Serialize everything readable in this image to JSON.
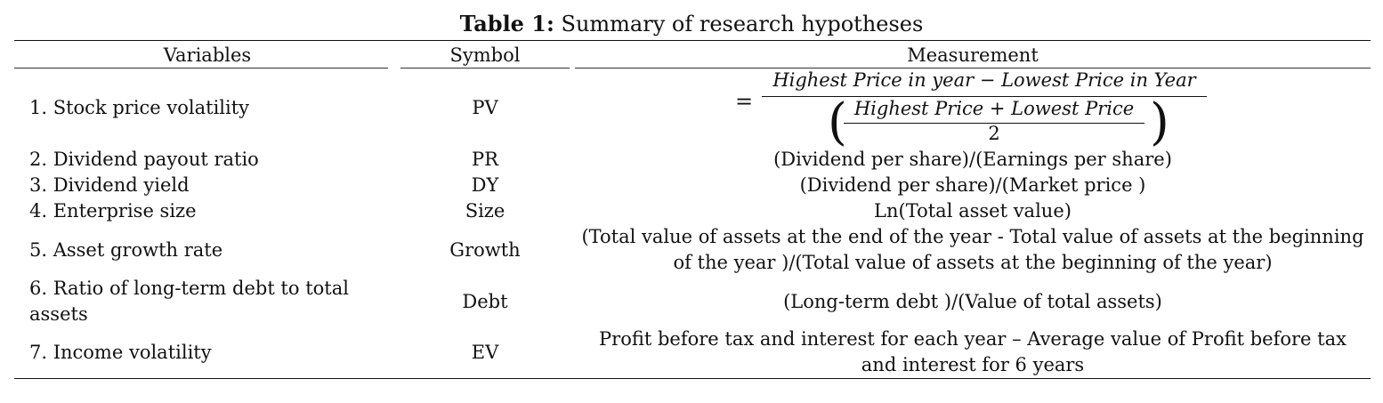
{
  "caption": {
    "label": "Table 1:",
    "text": " Summary of research hypotheses"
  },
  "headers": {
    "variables": "Variables",
    "symbol": "Symbol",
    "measurement": "Measurement"
  },
  "formula": {
    "equals": "=",
    "numerator": "Highest Price in year − Lowest Price in Year",
    "inner_numerator": "Highest Price + Lowest Price",
    "inner_denominator": "2",
    "open_paren": "(",
    "close_paren": ")"
  },
  "rows": [
    {
      "variable": "1. Stock price volatility",
      "symbol": "PV",
      "measurement": ""
    },
    {
      "variable": "2. Dividend payout ratio",
      "symbol": "PR",
      "measurement": "(Dividend per share)/(Earnings per share)"
    },
    {
      "variable": "3. Dividend yield",
      "symbol": "DY",
      "measurement": "(Dividend per share)/(Market price )"
    },
    {
      "variable": "4. Enterprise size",
      "symbol": "Size",
      "measurement": "Ln(Total asset value)"
    },
    {
      "variable": "5. Asset growth rate",
      "symbol": "Growth",
      "measurement_line1": "(Total value of assets at the end of the year - Total value of assets at the beginning",
      "measurement_line2": "of the year )/(Total value of assets at the beginning of the year)"
    },
    {
      "variable_line1": "6. Ratio of long-term debt to total",
      "variable_line2": "assets",
      "symbol": "Debt",
      "measurement": "(Long-term debt )/(Value of total assets)"
    },
    {
      "variable": "7. Income volatility",
      "symbol": "EV",
      "measurement_line1": "Profit before tax and interest for each year – Average value of Profit before tax",
      "measurement_line2": "and interest for 6 years"
    }
  ]
}
